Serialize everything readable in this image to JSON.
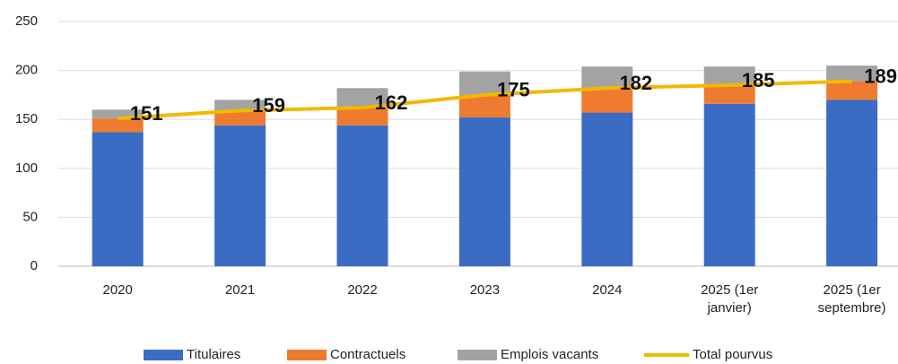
{
  "chart_data": {
    "type": "bar",
    "categories": [
      "2020",
      "2021",
      "2022",
      "2023",
      "2024",
      "2025 (1er janvier)",
      "2025 (1er septembre)"
    ],
    "series": [
      {
        "name": "Titulaires",
        "color": "#3a6cc4",
        "values": [
          137,
          144,
          144,
          152,
          157,
          166,
          170
        ]
      },
      {
        "name": "Contractuels",
        "color": "#ee7b30",
        "values": [
          14,
          15,
          18,
          23,
          25,
          19,
          19
        ]
      },
      {
        "name": "Emplois vacants",
        "color": "#a3a3a3",
        "values": [
          9,
          11,
          20,
          24,
          22,
          19,
          16
        ]
      },
      {
        "name": "Total pourvus",
        "color": "#f2b800",
        "type": "line",
        "values": [
          151,
          159,
          162,
          175,
          182,
          185,
          189
        ]
      }
    ],
    "ylim": [
      0,
      250
    ],
    "yticks": [
      0,
      50,
      100,
      150,
      200,
      250
    ],
    "grid": true,
    "legend": "bottom"
  }
}
